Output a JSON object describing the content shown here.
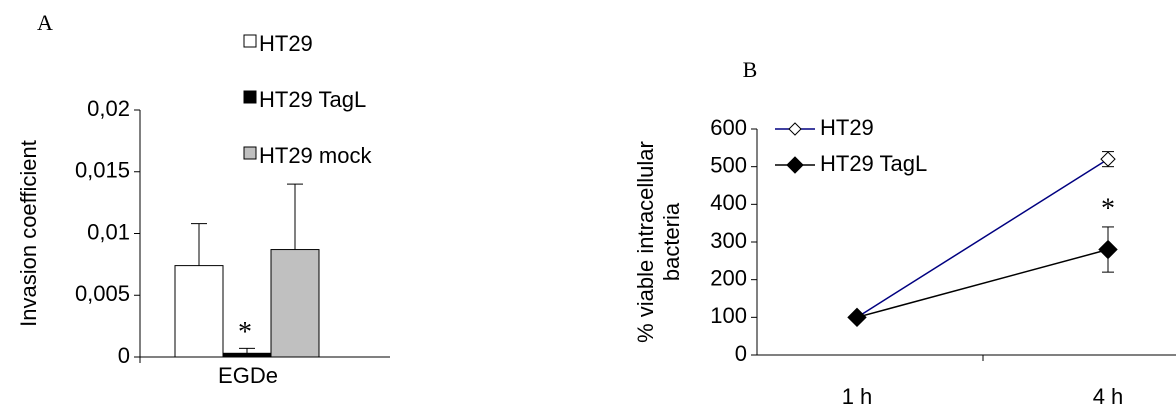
{
  "chart_data": [
    {
      "type": "bar",
      "panel": "A",
      "ylabel": "Invasion coefficient",
      "categories": [
        "EGDe"
      ],
      "series": [
        {
          "name": "HT29",
          "color": "#ffffff",
          "values": [
            0.0074
          ],
          "errors": [
            0.0034
          ]
        },
        {
          "name": "HT29 TagL",
          "color": "#000000",
          "values": [
            0.0003
          ],
          "errors": [
            0.0004
          ]
        },
        {
          "name": "HT29 mock",
          "color": "#c0c0c0",
          "values": [
            0.0087
          ],
          "errors": [
            0.0053
          ]
        }
      ],
      "annotation": "*",
      "ylim": [
        0,
        0.02
      ],
      "yticks": [
        0,
        {
          "value": 0.005,
          "label": "0,005"
        },
        {
          "value": 0.01,
          "label": "0,01"
        },
        {
          "value": 0.015,
          "label": "0,015"
        },
        {
          "value": 0.02,
          "label": "0,02"
        }
      ]
    },
    {
      "type": "line",
      "panel": "B",
      "ylabel": [
        "% viable intracellular",
        "bacteria"
      ],
      "categories": [
        "1 h",
        "4 h"
      ],
      "series": [
        {
          "name": "HT29",
          "color": "#000080",
          "marker": "open-diamond",
          "values": [
            100,
            520
          ],
          "errors": [
            null,
            20
          ]
        },
        {
          "name": "HT29 TagL",
          "color": "#000000",
          "marker": "filled-diamond",
          "values": [
            100,
            280
          ],
          "errors": [
            null,
            60
          ]
        }
      ],
      "annotation": "*",
      "ylim": [
        0,
        600
      ],
      "yticks": [
        0,
        100,
        200,
        300,
        400,
        500,
        600
      ]
    }
  ]
}
